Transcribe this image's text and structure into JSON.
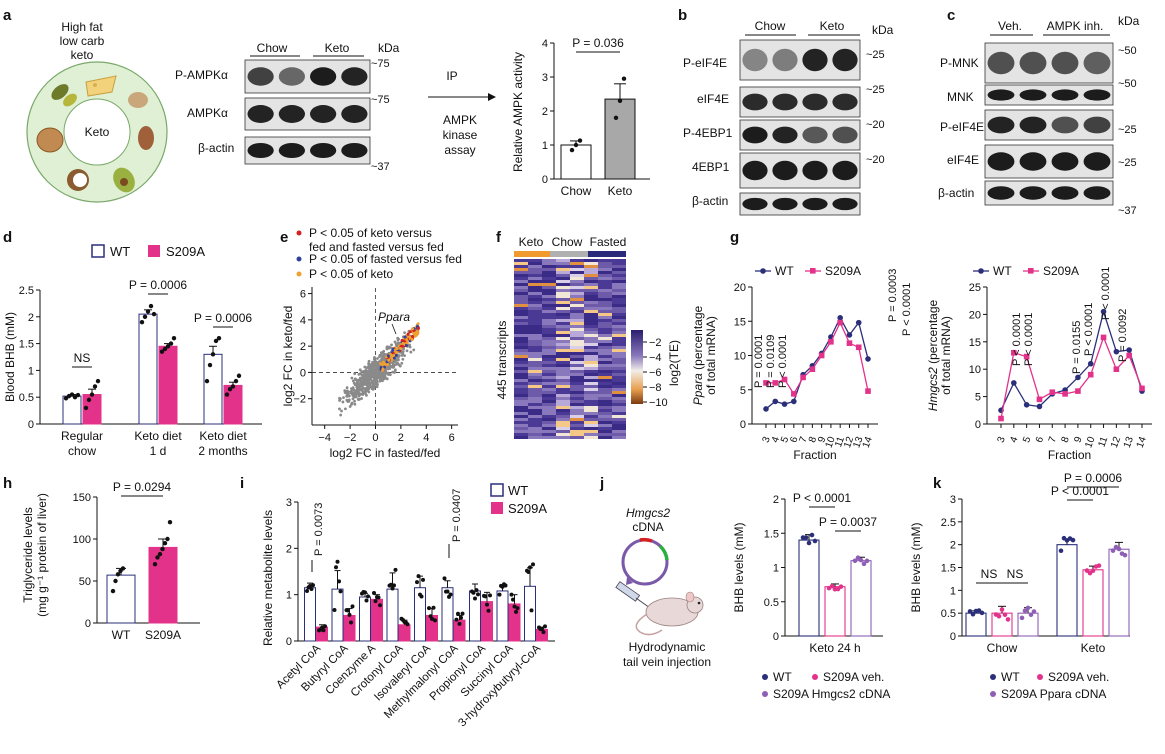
{
  "panel_letters": [
    "a",
    "b",
    "c",
    "d",
    "e",
    "f",
    "g",
    "h",
    "i",
    "j",
    "k"
  ],
  "colors": {
    "wt": "#2b2f7a",
    "s209a": "#e3328a",
    "purple": "#8e5fb5",
    "grey": "#a8a8a8",
    "scatter": "#8a8a8a",
    "orange": "#f0a030",
    "red": "#d42020",
    "blue": "#3040a0"
  },
  "panel_a": {
    "diet_label": [
      "High fat",
      "low carb",
      "keto"
    ],
    "plate_label": "Keto",
    "groups": [
      "Chow",
      "Keto"
    ],
    "rows": [
      "P-AMPKα",
      "AMPKα",
      "β-actin"
    ],
    "kda_header": "kDa",
    "kda": [
      "~75",
      "~75",
      "~37"
    ],
    "arrow_top": "IP",
    "arrow_bottom": [
      "AMPK",
      "kinase",
      "assay"
    ]
  },
  "panel_b": {
    "groups": [
      "Chow",
      "Keto"
    ],
    "kda_header": "kDa",
    "rows": [
      "P-eIF4E",
      "eIF4E",
      "P-4EBP1",
      "4EBP1",
      "β-actin"
    ],
    "kda": [
      "~25",
      "~25",
      "~20",
      "~20"
    ]
  },
  "panel_c": {
    "groups": [
      "Veh.",
      "AMPK inh."
    ],
    "kda_header": "kDa",
    "rows": [
      "P-MNK",
      "MNK",
      "P-eIF4E",
      "eIF4E",
      "β-actin"
    ],
    "kda": [
      "~50",
      "~50",
      "~25",
      "~25",
      "~37"
    ]
  },
  "panel_e": {
    "legend": [
      "P < 0.05 of keto versus fed and fasted versus fed",
      "P < 0.05 of fasted versus fed",
      "P < 0.05 of keto"
    ],
    "legend_lines": [
      [
        "P < 0.05 of keto versus",
        "fed and fasted versus fed"
      ],
      [
        "P < 0.05 of fasted versus fed"
      ],
      [
        "P < 0.05 of keto"
      ]
    ],
    "annotation": "Ppara",
    "xlabel": "log2 FC in fasted/fed",
    "ylabel": "log2 FC in keto/fed"
  },
  "panel_f": {
    "groups": [
      "Keto",
      "Chow",
      "Fasted"
    ],
    "row_label": "445 transcripts",
    "colorbar_title": "log2(TE)",
    "colorbar_ticks": [
      "-2",
      "-4",
      "-6",
      "-8",
      "-10"
    ]
  },
  "panel_j": {
    "plasmid_label": [
      "Hmgcs2",
      "cDNA"
    ],
    "injection_label": [
      "Hydrodynamic",
      "tail vein injection"
    ]
  },
  "chart_data": [
    {
      "id": "a-bar",
      "type": "bar",
      "categories": [
        "Chow",
        "Keto"
      ],
      "values": [
        1.0,
        2.35
      ],
      "errors": [
        0.12,
        0.45
      ],
      "points": [
        [
          0.85,
          1.0,
          1.13
        ],
        [
          1.8,
          2.3,
          2.95
        ]
      ],
      "ylabel": "Relative AMPK activity",
      "ylim": [
        0,
        4
      ],
      "yticks": [
        0,
        1,
        2,
        3,
        4
      ],
      "annotation": "P = 0.036"
    },
    {
      "id": "d-bar",
      "type": "bar",
      "categories": [
        [
          "Regular",
          "chow"
        ],
        [
          "Keto diet",
          "1 d"
        ],
        [
          "Keto diet",
          "2 months"
        ]
      ],
      "series": [
        {
          "name": "WT",
          "values": [
            0.52,
            2.05,
            1.3
          ],
          "errors": [
            0.03,
            0.08,
            0.15
          ],
          "points": [
            [
              0.48,
              0.52,
              0.55,
              0.5,
              0.54
            ],
            [
              1.9,
              2.0,
              2.1,
              2.2,
              2.05
            ],
            [
              0.8,
              1.1,
              1.3,
              1.55,
              1.6
            ]
          ]
        },
        {
          "name": "S209A",
          "values": [
            0.55,
            1.45,
            0.72
          ],
          "errors": [
            0.1,
            0.05,
            0.06
          ],
          "points": [
            [
              0.3,
              0.45,
              0.55,
              0.7,
              0.8
            ],
            [
              1.35,
              1.4,
              1.45,
              1.5,
              1.6
            ],
            [
              0.55,
              0.65,
              0.7,
              0.8,
              0.9
            ]
          ]
        }
      ],
      "ylabel": "Blood BHB (mM)",
      "ylim": [
        0,
        2.5
      ],
      "yticks": [
        0,
        0.5,
        1.0,
        1.5,
        2.0,
        2.5
      ],
      "annotations": [
        "NS",
        "P = 0.0006",
        "P = 0.0006"
      ]
    },
    {
      "id": "e-scatter",
      "type": "scatter",
      "xlabel": "log2 FC in fasted/fed",
      "ylabel": "log2 FC in keto/fed",
      "xlim": [
        -5,
        6.5
      ],
      "ylim": [
        -4,
        6.5
      ],
      "xticks": [
        -4,
        -2,
        0,
        2,
        4,
        6
      ],
      "yticks": [
        -2,
        0,
        2,
        4,
        6
      ]
    },
    {
      "id": "f-heatmap",
      "type": "heatmap",
      "columns": [
        "Keto",
        "Chow",
        "Fasted"
      ],
      "colorbar_range": [
        -11,
        -1
      ]
    },
    {
      "id": "g-ppara",
      "type": "line",
      "x": [
        3,
        4,
        5,
        6,
        7,
        8,
        9,
        10,
        11,
        12,
        13,
        14
      ],
      "series": [
        {
          "name": "WT",
          "values": [
            2.2,
            3.3,
            2.9,
            3.3,
            7.2,
            8.5,
            10.3,
            12.7,
            15.5,
            13.0,
            14.8,
            9.5
          ]
        },
        {
          "name": "S209A",
          "values": [
            6.0,
            6.0,
            6.5,
            4.4,
            6.8,
            8.0,
            10.0,
            12.0,
            14.8,
            11.8,
            11.2,
            4.8
          ]
        }
      ],
      "xlabel": "Fraction",
      "ylabel": "Ppara (percentage of total mRNA)",
      "ylim": [
        0,
        20
      ],
      "yticks": [
        0,
        5,
        10,
        15,
        20
      ],
      "annotations": [
        "P = 0.0001",
        "P = 0.0109",
        "P < 0.0001",
        "P = 0.0003",
        "P < 0.0001"
      ]
    },
    {
      "id": "g-hmgcs2",
      "type": "line",
      "x": [
        3,
        4,
        5,
        6,
        7,
        8,
        9,
        10,
        11,
        12,
        13,
        14
      ],
      "series": [
        {
          "name": "WT",
          "values": [
            2.5,
            7.5,
            3.5,
            3.2,
            5.5,
            6.2,
            8.5,
            11.0,
            20.5,
            13.2,
            13.5,
            6.0
          ]
        },
        {
          "name": "S209A",
          "values": [
            1.0,
            13.0,
            12.3,
            4.5,
            5.8,
            5.5,
            6.0,
            9.0,
            15.8,
            10.0,
            12.5,
            6.5
          ]
        }
      ],
      "xlabel": "Fraction",
      "ylabel": "Hmgcs2 (percentage of total mRNA)",
      "ylim": [
        0,
        25
      ],
      "yticks": [
        0,
        5,
        10,
        15,
        20,
        25
      ],
      "annotations": [
        "P < 0.0001",
        "P < 0.0001",
        "P = 0.0155",
        "P < 0.0001",
        "P < 0.0001",
        "P = 0.0092"
      ]
    },
    {
      "id": "h-bar",
      "type": "bar",
      "categories": [
        "WT",
        "S209A"
      ],
      "values": [
        57,
        90
      ],
      "errors": [
        8,
        10
      ],
      "points": [
        [
          38,
          50,
          58,
          62,
          65
        ],
        [
          70,
          78,
          82,
          88,
          95,
          100,
          120
        ]
      ],
      "ylabel": "Triglyceride levels (mg g−1 protein of liver)",
      "ylim": [
        0,
        150
      ],
      "yticks": [
        0,
        50,
        100,
        150
      ],
      "annotation": "P = 0.0294"
    },
    {
      "id": "i-bar",
      "type": "bar",
      "categories": [
        "Acetyl CoA",
        "Butyryl CoA",
        "Coenzyme A",
        "Crotonyl CoA",
        "Isovaleryl CoA",
        "Methylmalonyl CoA",
        "Propionyl CoA",
        "Succinyl CoA",
        "3-hydroxybutyryl-CoA"
      ],
      "series": [
        {
          "name": "WT",
          "values": [
            1.15,
            1.12,
            0.95,
            1.12,
            1.15,
            1.15,
            1.08,
            1.08,
            1.18
          ],
          "errors": [
            0.1,
            0.4,
            0.08,
            0.35,
            0.25,
            0.15,
            0.15,
            0.1,
            0.4
          ]
        },
        {
          "name": "S209A",
          "values": [
            0.3,
            0.55,
            0.9,
            0.35,
            0.55,
            0.45,
            0.85,
            0.8,
            0.25
          ],
          "errors": [
            0.05,
            0.15,
            0.1,
            0.1,
            0.15,
            0.1,
            0.2,
            0.2,
            0.05
          ]
        }
      ],
      "ylabel": "Relative metabolite levels",
      "ylim": [
        0,
        3
      ],
      "yticks": [
        0,
        1,
        2,
        3
      ],
      "annotations": [
        "P = 0.0073",
        "P = 0.0407"
      ]
    },
    {
      "id": "j-bar",
      "type": "bar",
      "categories": [
        "Keto 24 h"
      ],
      "series": [
        {
          "name": "WT",
          "values": [
            1.4
          ],
          "errors": [
            0.08
          ]
        },
        {
          "name": "S209A veh.",
          "values": [
            0.72
          ],
          "errors": [
            0.04
          ]
        },
        {
          "name": "S209A Hmgcs2 cDNA",
          "values": [
            1.1
          ],
          "errors": [
            0.05
          ]
        }
      ],
      "ylabel": "BHB levels (mM)",
      "ylim": [
        0,
        2.0
      ],
      "yticks": [
        0,
        0.5,
        1.0,
        1.5,
        2.0
      ],
      "annotations": [
        "P < 0.0001",
        "P = 0.0037"
      ]
    },
    {
      "id": "k-bar",
      "type": "bar",
      "categories": [
        "Chow",
        "Keto"
      ],
      "series": [
        {
          "name": "WT",
          "values": [
            0.5,
            2.0
          ],
          "errors": [
            0.05,
            0.12
          ]
        },
        {
          "name": "S209A veh.",
          "values": [
            0.5,
            1.45
          ],
          "errors": [
            0.15,
            0.08
          ]
        },
        {
          "name": "S209A Ppara cDNA",
          "values": [
            0.5,
            1.9
          ],
          "errors": [
            0.12,
            0.15
          ]
        }
      ],
      "ylabel": "BHB levels (mM)",
      "ylim": [
        0,
        3.0
      ],
      "yticks": [
        0,
        0.5,
        1.0,
        1.5,
        2.0,
        2.5,
        3.0
      ],
      "annotations": [
        "NS",
        "NS",
        "P < 0.0001",
        "P = 0.0006"
      ]
    }
  ]
}
